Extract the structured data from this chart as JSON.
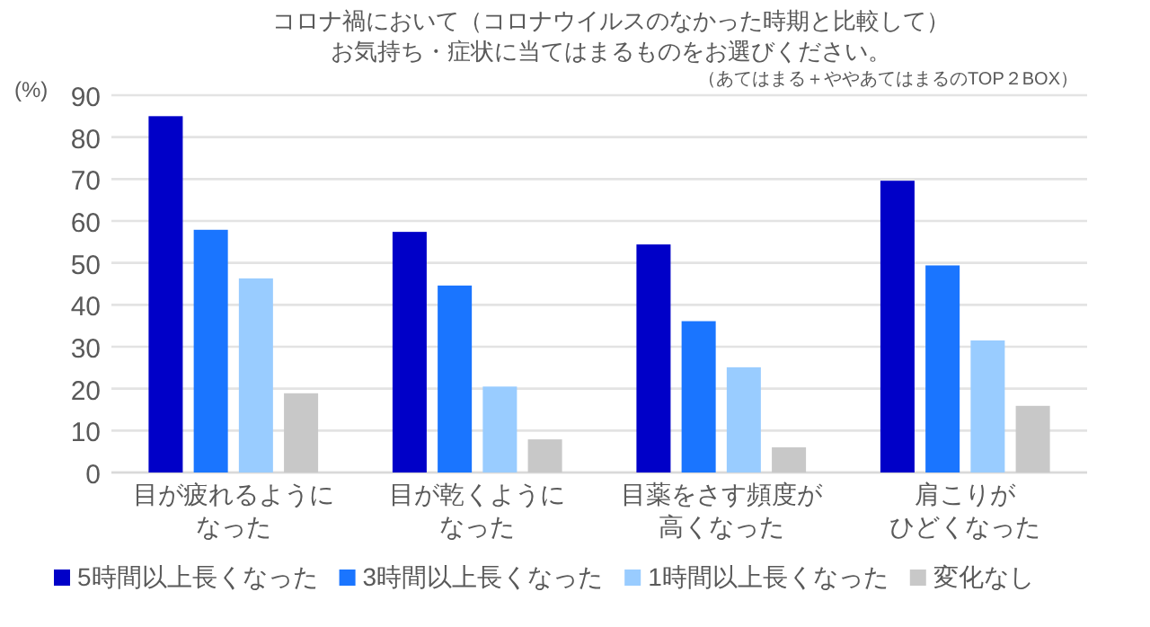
{
  "chart_data": {
    "type": "bar",
    "title": "コロナ禍において（コロナウイルスのなかった時期と比較して）お気持ち・症状に当てはまるものをお選びください。",
    "annotations": [
      "（あてはまる＋ややあてはまるのTOP２BOX）"
    ],
    "ylabel": "(%)",
    "categories": [
      "目が疲れるようになった",
      "目が乾くようになった",
      "目薬をさす頻度が高くなった",
      "肩こりがひどくなった"
    ],
    "series": [
      {
        "name": "5時間以上長くなった",
        "color": "#0000c8",
        "values": [
          85,
          57.4,
          54.4,
          69.6
        ]
      },
      {
        "name": "3時間以上長くなった",
        "color": "#1a75ff",
        "values": [
          57.9,
          44.6,
          36.1,
          49.4
        ]
      },
      {
        "name": "1時間以上長くなった",
        "color": "#99ccff",
        "values": [
          46.3,
          20.5,
          25.1,
          31.5
        ]
      },
      {
        "name": "変化なし",
        "color": "#c8c8c8",
        "values": [
          18.9,
          7.9,
          6.0,
          15.9
        ]
      }
    ],
    "ylim": [
      0,
      90
    ],
    "yticks": [
      0,
      10,
      20,
      30,
      40,
      50,
      60,
      70,
      80,
      90
    ],
    "grid": "y",
    "legend": "bottom"
  }
}
